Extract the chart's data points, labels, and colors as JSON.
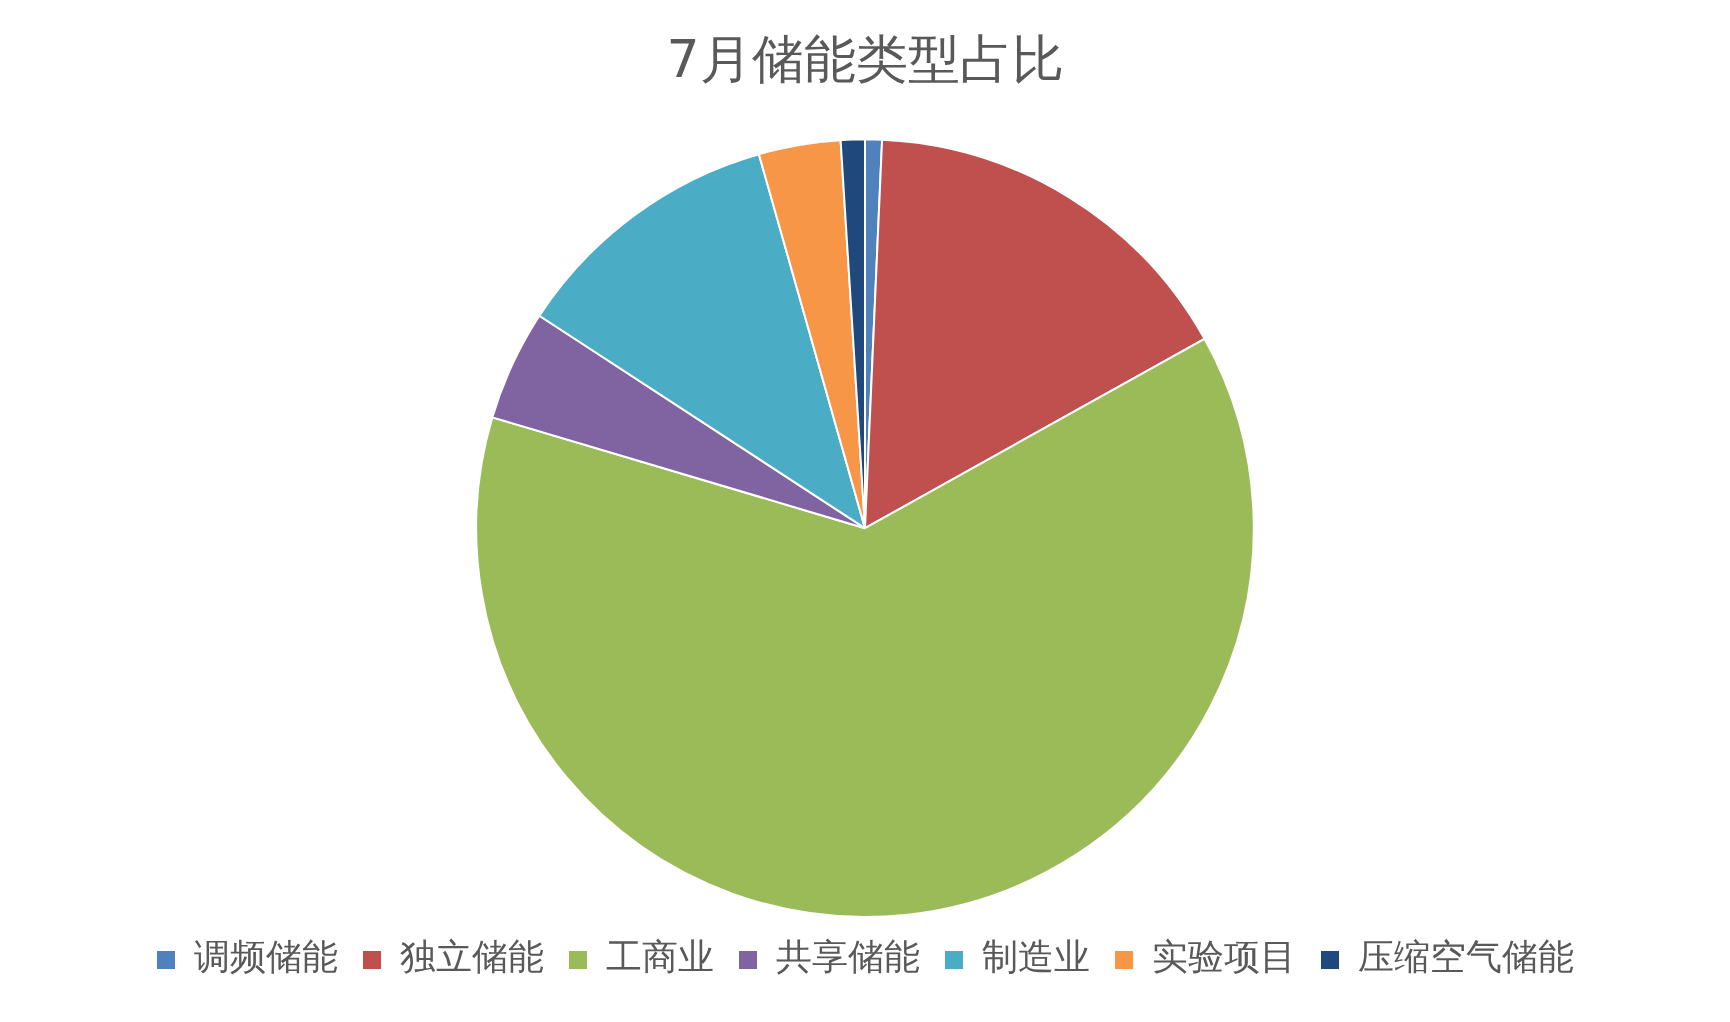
{
  "chart_data": {
    "type": "pie",
    "title": "7月储能类型占比",
    "categories": [
      "调频储能",
      "独立储能",
      "工商业",
      "共享储能",
      "制造业",
      "实验项目",
      "压缩空气储能"
    ],
    "values": [
      0.7,
      16.2,
      62.7,
      4.6,
      11.4,
      3.4,
      1.0
    ],
    "colors": [
      "#4f81bd",
      "#c0504d",
      "#9bbb59",
      "#8064a2",
      "#4bacc6",
      "#f79646",
      "#1f497d"
    ],
    "legend": "bottom"
  }
}
